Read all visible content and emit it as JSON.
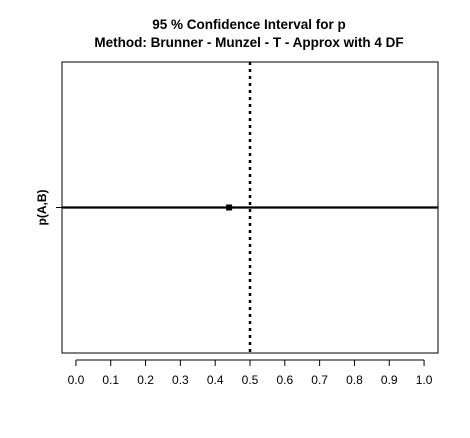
{
  "chart_data": {
    "type": "scatter",
    "title": "95 % Confidence Interval for p",
    "subtitle": "Method: Brunner - Munzel - T - Approx with 4 DF",
    "xlabel": "",
    "ylabel": "p(A,B)",
    "xlim": [
      -0.04,
      1.04
    ],
    "ticks": [
      "0.0",
      "0.1",
      "0.2",
      "0.3",
      "0.4",
      "0.5",
      "0.6",
      "0.7",
      "0.8",
      "0.9",
      "1.0"
    ],
    "tick_values": [
      0.0,
      0.1,
      0.2,
      0.3,
      0.4,
      0.5,
      0.6,
      0.7,
      0.8,
      0.9,
      1.0
    ],
    "point_estimate": 0.44,
    "ci_lower": -0.04,
    "ci_upper": 1.04,
    "reference_line": 0.5,
    "grid": false,
    "colors": {
      "line": "#000000",
      "point": "#000000",
      "background": "#ffffff"
    }
  }
}
